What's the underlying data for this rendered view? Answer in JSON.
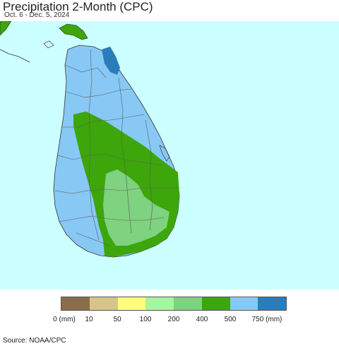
{
  "header": {
    "title": "Precipitation 2-Month (CPC)",
    "date_range": "Oct. 6 - Dec. 5, 2024"
  },
  "legend": {
    "colors": [
      "#8b6d4c",
      "#d6c48a",
      "#ffff7a",
      "#a6f5a0",
      "#7fd27f",
      "#3ca60a",
      "#88c8f5",
      "#2b7dba"
    ],
    "labels": [
      "0 (mm)",
      "10",
      "50",
      "100",
      "200",
      "400",
      "500",
      "750 (mm)"
    ]
  },
  "map": {
    "ocean_color": "#ccffff",
    "landmass": "Sri Lanka",
    "category_colors": {
      "500_to_750mm": "#88c8f5",
      "400_to_500mm": "#3ca60a",
      "200_to_400mm": "#7fd27f",
      "750mm_plus": "#2b7dba"
    }
  },
  "footer": {
    "source": "Source: NOAA/CPC"
  }
}
